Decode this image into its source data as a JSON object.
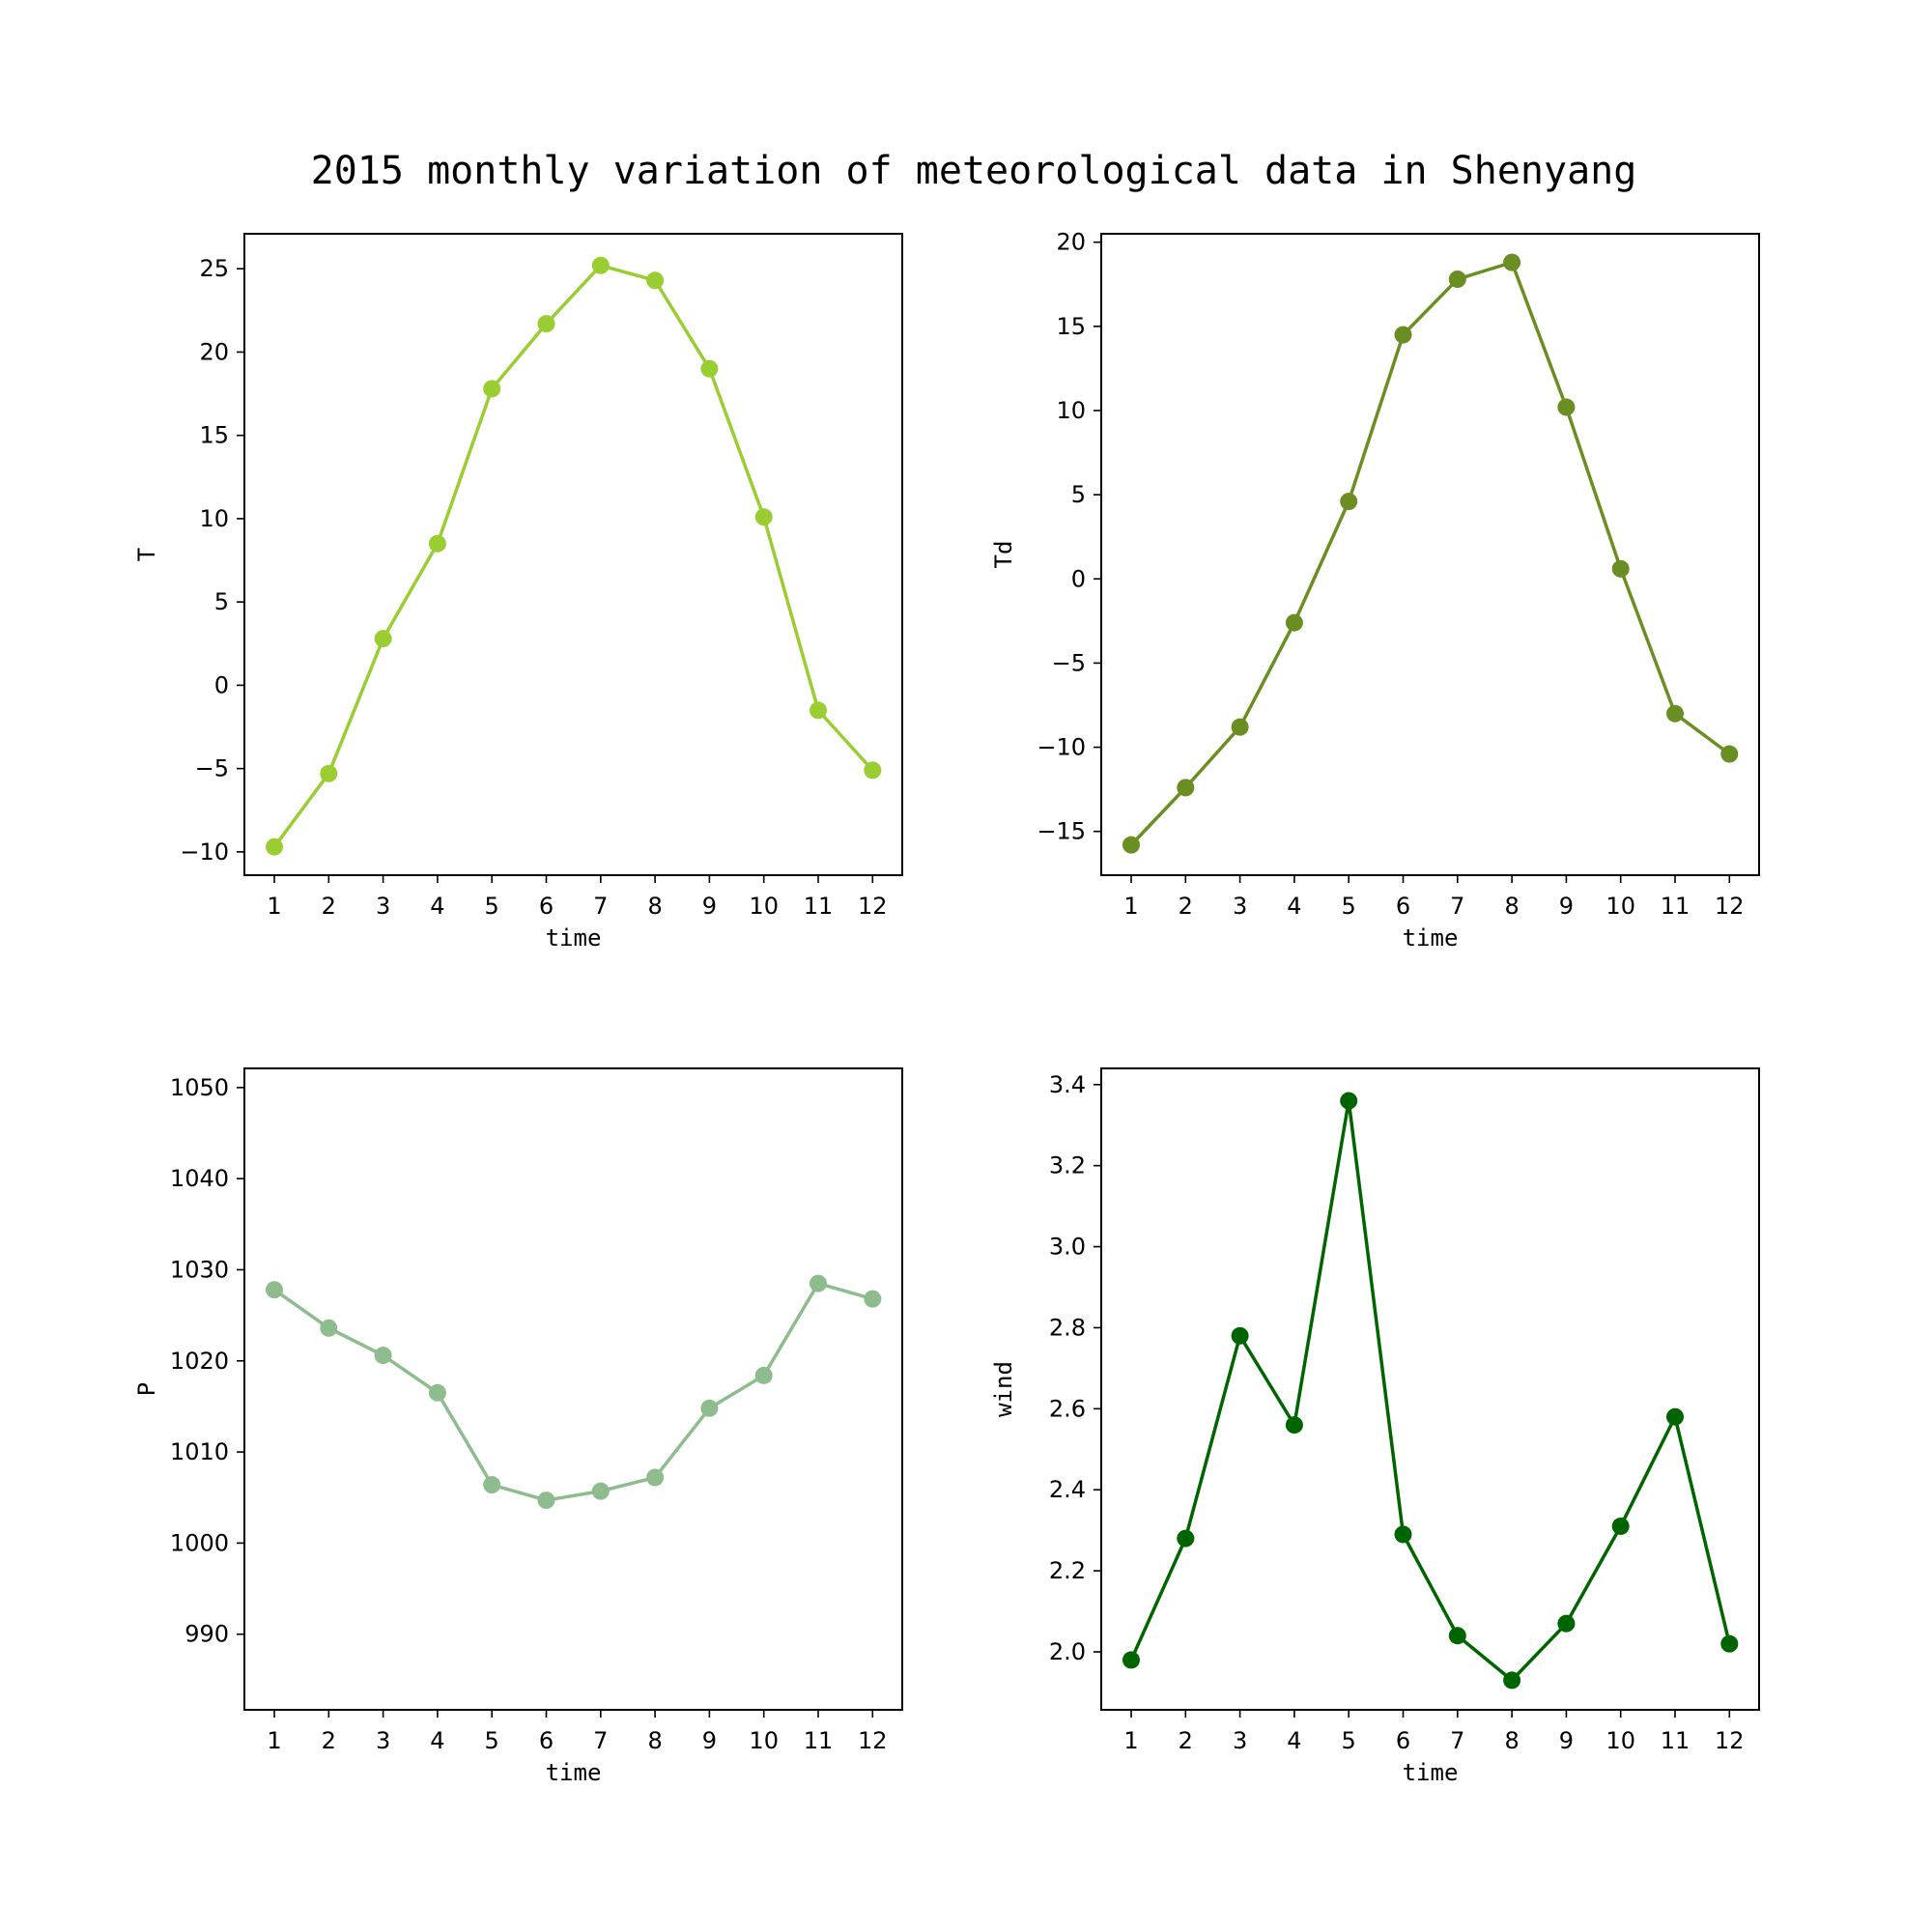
{
  "figure_title": "2015 monthly variation of meteorological data in Shenyang",
  "chart_data": [
    {
      "type": "line",
      "xlabel": "time",
      "ylabel": "T",
      "x": [
        1,
        2,
        3,
        4,
        5,
        6,
        7,
        8,
        9,
        10,
        11,
        12
      ],
      "values": [
        -9.7,
        -5.3,
        2.8,
        8.5,
        17.8,
        21.7,
        25.2,
        24.3,
        19.0,
        10.1,
        -1.5,
        -5.1
      ],
      "color": "#9acd32",
      "ylim": [
        -11.4,
        27.1
      ],
      "yticks": [
        -10,
        -5,
        0,
        5,
        10,
        15,
        20,
        25
      ]
    },
    {
      "type": "line",
      "xlabel": "time",
      "ylabel": "Td",
      "x": [
        1,
        2,
        3,
        4,
        5,
        6,
        7,
        8,
        9,
        10,
        11,
        12
      ],
      "values": [
        -15.8,
        -12.4,
        -8.8,
        -2.6,
        4.6,
        14.5,
        17.8,
        18.8,
        10.2,
        0.6,
        -8.0,
        -10.4
      ],
      "color": "#6b8e23",
      "ylim": [
        -17.6,
        20.5
      ],
      "yticks": [
        -15,
        -10,
        -5,
        0,
        5,
        10,
        15,
        20
      ]
    },
    {
      "type": "line",
      "xlabel": "time",
      "ylabel": "P",
      "x": [
        1,
        2,
        3,
        4,
        5,
        6,
        7,
        8,
        9,
        10,
        11,
        12
      ],
      "values": [
        1027.8,
        1023.6,
        1020.6,
        1016.5,
        1006.4,
        1004.7,
        1005.7,
        1007.2,
        1014.8,
        1018.4,
        1028.5,
        1026.8
      ],
      "color": "#8fbc8f",
      "ylim": [
        981.7,
        1052.1
      ],
      "yticks": [
        990,
        1000,
        1010,
        1020,
        1030,
        1040,
        1050
      ]
    },
    {
      "type": "line",
      "xlabel": "time",
      "ylabel": "wind",
      "x": [
        1,
        2,
        3,
        4,
        5,
        6,
        7,
        8,
        9,
        10,
        11,
        12
      ],
      "values": [
        1.98,
        2.28,
        2.78,
        2.56,
        3.36,
        2.29,
        2.04,
        1.93,
        2.07,
        2.31,
        2.58,
        2.02
      ],
      "color": "#006400",
      "ylim": [
        1.857,
        3.44
      ],
      "yticks": [
        2.0,
        2.2,
        2.4,
        2.6,
        2.8,
        3.0,
        3.2,
        3.4
      ],
      "ytick_decimals": 1
    }
  ]
}
